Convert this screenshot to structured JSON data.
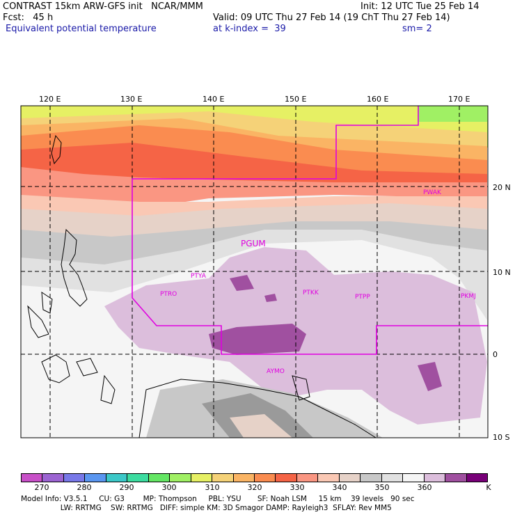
{
  "header": {
    "line1_left": "CONTRAST 15km ARW-GFS init   NCAR/MMM",
    "line1_right": "Init: 12 UTC Tue 25 Feb 14",
    "fcst": "Fcst:   45 h",
    "valid": "Valid: 09 UTC Thu 27 Feb 14 (19 ChT Thu 27 Feb 14)",
    "field": "Equivalent potential temperature",
    "level": "at k-index =  39",
    "smooth": "sm= 2"
  },
  "map": {
    "lon_labels": [
      "120 E",
      "130 E",
      "140 E",
      "150 E",
      "160 E",
      "170 E"
    ],
    "lat_labels": [
      "20 N",
      "10 N",
      "0",
      "10 S"
    ],
    "stations": [
      "PGUM",
      "PTYA",
      "PTRO",
      "PTKK",
      "PTPP",
      "PKMJ",
      "PWAK",
      "AYMO"
    ],
    "colors": {
      "grid": "#000000",
      "boundary": "#e000e0",
      "station": "#e000e0"
    }
  },
  "colorbar": {
    "labels": [
      "270",
      "280",
      "290",
      "300",
      "310",
      "320",
      "330",
      "340",
      "350",
      "360"
    ],
    "unit": "K",
    "colors": [
      "#c850c8",
      "#9c64d2",
      "#7878e8",
      "#5a96f0",
      "#3cc8c8",
      "#3cdca0",
      "#64e664",
      "#a0f064",
      "#e6f064",
      "#f5d278",
      "#fab464",
      "#fa8c50",
      "#f56446",
      "#fa9682",
      "#fac8b4",
      "#e6d2c8",
      "#c8c8c8",
      "#e1e1e1",
      "#f5f5f5",
      "#dcbedc",
      "#a050a0",
      "#780078"
    ]
  },
  "footer": {
    "line1": "Model Info: V3.5.1     CU: G3        MP: Thompson     PBL: YSU       SF: Noah LSM     15 km    39 levels   90 sec",
    "line2": "                 LW: RRTMG    SW: RRTMG   DIFF: simple KM: 3D Smagor DAMP: Rayleigh3  SFLAY: Rev MM5"
  }
}
